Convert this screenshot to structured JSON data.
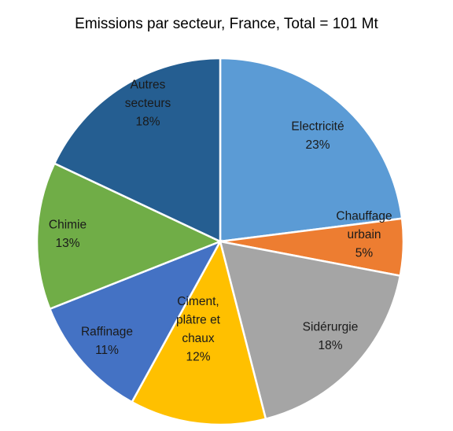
{
  "chart_data": {
    "type": "pie",
    "title": "Emissions par secteur, France, Total = 101 Mt",
    "slices": [
      {
        "label": "Electricité",
        "value": 23,
        "percent_label": "23%",
        "color": "#5b9bd5"
      },
      {
        "label": "Chauffage urbain",
        "value": 5,
        "percent_label": "5%",
        "color": "#ed7d31"
      },
      {
        "label": "Sidérurgie",
        "value": 18,
        "percent_label": "18%",
        "color": "#a5a5a5"
      },
      {
        "label": "Ciment, plâtre et chaux",
        "value": 12,
        "percent_label": "12%",
        "color": "#ffc000"
      },
      {
        "label": "Raffinage",
        "value": 11,
        "percent_label": "11%",
        "color": "#4472c4"
      },
      {
        "label": "Chimie",
        "value": 13,
        "percent_label": "13%",
        "color": "#70ad47"
      },
      {
        "label": "Autres secteurs",
        "value": 18,
        "percent_label": "18%",
        "color": "#255e91"
      }
    ]
  }
}
